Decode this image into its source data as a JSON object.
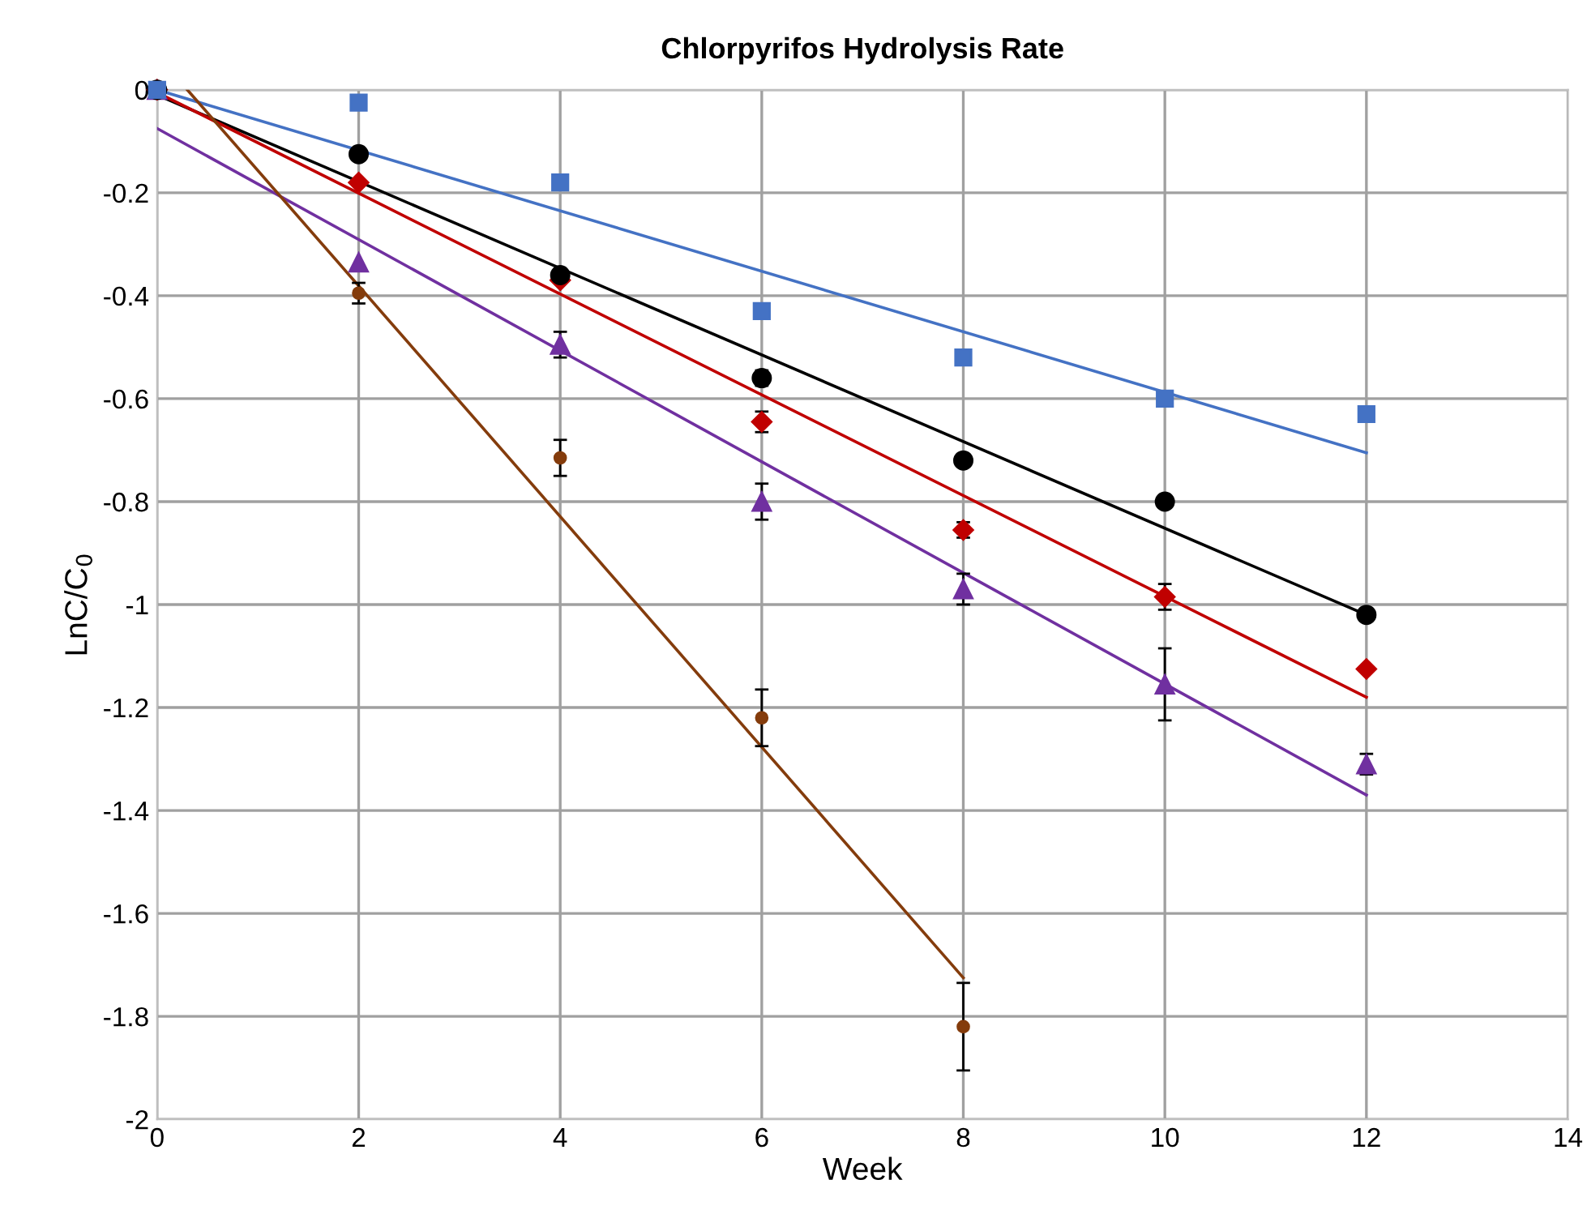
{
  "chart_data": {
    "type": "scatter",
    "title": "Chlorpyrifos Hydrolysis Rate",
    "xlabel": "Week",
    "ylabel": "LnC/C$_{0}$",
    "xlim": [
      0,
      14
    ],
    "xticks": [
      0,
      2,
      4,
      6,
      8,
      10,
      12,
      14
    ],
    "ylim": [
      -2,
      0
    ],
    "yticks": [
      -2,
      -1.8,
      -1.6,
      -1.4,
      -1.2,
      -1,
      -0.8,
      -0.6,
      -0.4,
      -0.2,
      0
    ],
    "grid": true,
    "legend": false,
    "series": [
      {
        "marker": "square",
        "color": "#4472c4",
        "x": [
          0,
          2,
          4,
          6,
          8,
          10,
          12
        ],
        "values": [
          0,
          -0.025,
          -0.18,
          -0.43,
          -0.52,
          -0.6,
          -0.63
        ]
      },
      {
        "marker": "circle",
        "color": "#000000",
        "x": [
          0,
          2,
          4,
          6,
          8,
          10,
          12
        ],
        "values": [
          0,
          -0.125,
          -0.36,
          -0.56,
          -0.72,
          -0.8,
          -1.02
        ],
        "errors": [
          null,
          null,
          null,
          0.015,
          null,
          null,
          null
        ]
      },
      {
        "marker": "diamond",
        "color": "#c00000",
        "x": [
          0,
          2,
          4,
          6,
          8,
          10,
          12
        ],
        "values": [
          0,
          -0.18,
          -0.37,
          -0.645,
          -0.855,
          -0.985,
          -1.125
        ],
        "errors": [
          null,
          null,
          null,
          0.02,
          0.015,
          0.025,
          null
        ]
      },
      {
        "marker": "triangle",
        "color": "#7030a0",
        "x": [
          0,
          2,
          4,
          6,
          8,
          10,
          12
        ],
        "values": [
          0,
          -0.335,
          -0.495,
          -0.8,
          -0.97,
          -1.155,
          -1.31
        ],
        "errors": [
          null,
          null,
          0.025,
          0.035,
          0.03,
          0.07,
          0.02
        ]
      },
      {
        "marker": "circle",
        "color": "#843c0c",
        "x": [
          2,
          4,
          6,
          8
        ],
        "values": [
          -0.395,
          -0.715,
          -1.22,
          -1.82
        ],
        "errors": [
          0.02,
          0.035,
          0.055,
          0.085
        ]
      },
      {
        "type": "line",
        "color": "#4472c4",
        "x": [
          0,
          12
        ],
        "values": [
          0,
          -0.705
        ]
      },
      {
        "type": "line",
        "color": "#000000",
        "x": [
          0,
          12
        ],
        "values": [
          -0.01,
          -1.02
        ]
      },
      {
        "type": "line",
        "color": "#c00000",
        "x": [
          0,
          12
        ],
        "values": [
          -0.005,
          -1.18
        ]
      },
      {
        "type": "line",
        "color": "#7030a0",
        "x": [
          0,
          12
        ],
        "values": [
          -0.075,
          -1.37
        ]
      },
      {
        "type": "line",
        "color": "#843c0c",
        "x": [
          0.3,
          8
        ],
        "values": [
          0,
          -1.725
        ]
      }
    ]
  }
}
